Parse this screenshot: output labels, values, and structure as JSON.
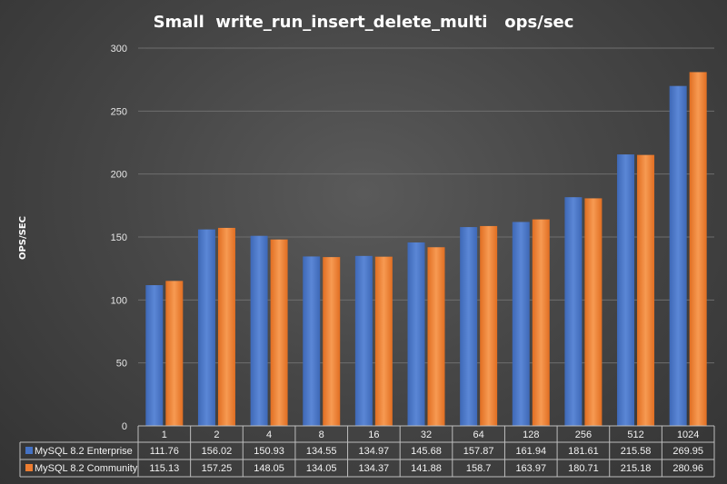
{
  "chart_data": {
    "type": "bar",
    "title": "Small  write_run_insert_delete_multi   ops/sec",
    "ylabel": "OPS/SEC",
    "xlabel": "",
    "ylim": [
      0,
      300
    ],
    "yticks": [
      0,
      50,
      100,
      150,
      200,
      250,
      300
    ],
    "grid": true,
    "legend": "data-table",
    "categories": [
      "1",
      "2",
      "4",
      "8",
      "16",
      "32",
      "64",
      "128",
      "256",
      "512",
      "1024"
    ],
    "series": [
      {
        "name": "MySQL 8.2 Enterprise",
        "color": "#4472c4",
        "values": [
          111.76,
          156.02,
          150.93,
          134.55,
          134.97,
          145.68,
          157.87,
          161.94,
          181.61,
          215.58,
          269.95
        ],
        "labels": [
          "111.76",
          "156.02",
          "150.93",
          "134.55",
          "134.97",
          "145.68",
          "157.87",
          "161.94",
          "181.61",
          "215.58",
          "269.95"
        ]
      },
      {
        "name": "MySQL 8.2 Community",
        "color": "#ed7d31",
        "values": [
          115.13,
          157.25,
          148.05,
          134.05,
          134.37,
          141.88,
          158.7,
          163.97,
          180.71,
          215.18,
          280.96
        ],
        "labels": [
          "115.13",
          "157.25",
          "148.05",
          "134.05",
          "134.37",
          "141.88",
          "158.7",
          "163.97",
          "180.71",
          "215.18",
          "280.96"
        ]
      }
    ]
  }
}
